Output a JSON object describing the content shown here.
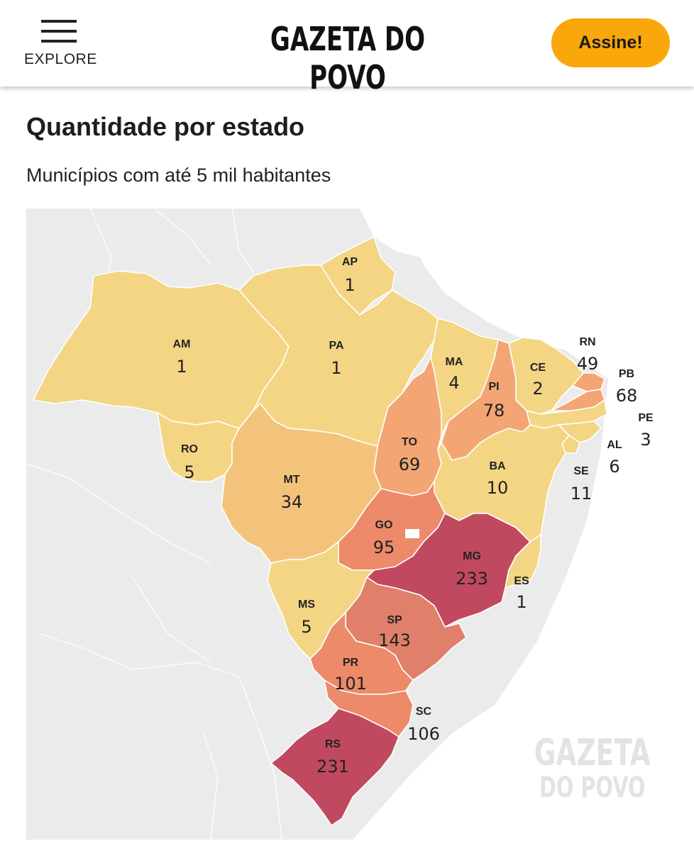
{
  "header": {
    "menu_label": "EXPLORE",
    "logo": "GAZETA DO POVO",
    "subscribe_label": "Assine!",
    "subscribe_color": "#f9a70a"
  },
  "page": {
    "title": "Quantidade por estado",
    "subtitle": "Municípios com até 5 mil habitantes"
  },
  "map": {
    "watermark_line1": "GAZETA",
    "watermark_line2": "DO POVO",
    "color_scale": [
      "#f3d583",
      "#f4c37b",
      "#f3a574",
      "#ec8a6a",
      "#e0806a",
      "#c0495f"
    ],
    "states": [
      {
        "code": "AP",
        "value": "1"
      },
      {
        "code": "AM",
        "value": "1"
      },
      {
        "code": "PA",
        "value": "1"
      },
      {
        "code": "MA",
        "value": "4"
      },
      {
        "code": "CE",
        "value": "2"
      },
      {
        "code": "RN",
        "value": "49"
      },
      {
        "code": "PB",
        "value": "68"
      },
      {
        "code": "PE",
        "value": "3"
      },
      {
        "code": "PI",
        "value": "78"
      },
      {
        "code": "AL",
        "value": "6"
      },
      {
        "code": "TO",
        "value": "69"
      },
      {
        "code": "SE",
        "value": "11"
      },
      {
        "code": "RO",
        "value": "5"
      },
      {
        "code": "MT",
        "value": "34"
      },
      {
        "code": "BA",
        "value": "10"
      },
      {
        "code": "GO",
        "value": "95"
      },
      {
        "code": "MG",
        "value": "233"
      },
      {
        "code": "ES",
        "value": "1"
      },
      {
        "code": "MS",
        "value": "5"
      },
      {
        "code": "SP",
        "value": "143"
      },
      {
        "code": "PR",
        "value": "101"
      },
      {
        "code": "SC",
        "value": "106"
      },
      {
        "code": "RS",
        "value": "231"
      }
    ]
  }
}
